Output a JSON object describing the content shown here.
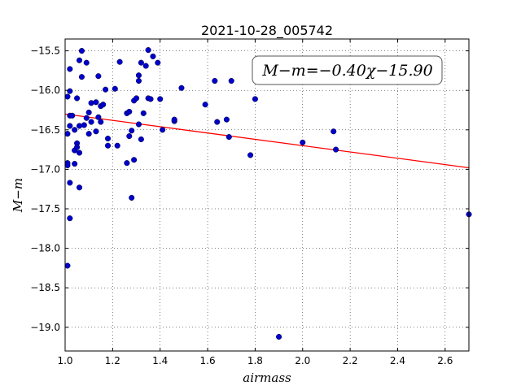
{
  "chart_data": {
    "type": "scatter",
    "title": "2021-10-28_005742",
    "xlabel": "airmass",
    "ylabel": "M−m",
    "xlim": [
      1.0,
      2.7
    ],
    "ylim": [
      -19.3,
      -15.35
    ],
    "y_inverted": true,
    "grid": true,
    "x_ticks": [
      1.0,
      1.2,
      1.4,
      1.6,
      1.8,
      2.0,
      2.2,
      2.4,
      2.6
    ],
    "x_tick_labels": [
      "1.0",
      "1.2",
      "1.4",
      "1.6",
      "1.8",
      "2.0",
      "2.2",
      "2.4",
      "2.6"
    ],
    "y_ticks": [
      -15.5,
      -16.0,
      -16.5,
      -17.0,
      -17.5,
      -18.0,
      -18.5,
      -19.0
    ],
    "y_tick_labels": [
      "−15.5",
      "−16.0",
      "−16.5",
      "−17.0",
      "−17.5",
      "−18.0",
      "−18.5",
      "−19.0"
    ],
    "fit": {
      "slope": -0.4,
      "intercept": -15.9,
      "color": "#ff0000"
    },
    "fit_label": "M−m=−0.40χ−15.90",
    "fit_label_position": "top-right",
    "point_color": "#0000cc",
    "points": [
      [
        1.01,
        -16.08
      ],
      [
        1.01,
        -16.55
      ],
      [
        1.01,
        -16.92
      ],
      [
        1.01,
        -16.95
      ],
      [
        1.01,
        -18.22
      ],
      [
        1.02,
        -15.73
      ],
      [
        1.02,
        -16.01
      ],
      [
        1.02,
        -16.32
      ],
      [
        1.02,
        -16.45
      ],
      [
        1.02,
        -17.17
      ],
      [
        1.02,
        -17.62
      ],
      [
        1.03,
        -16.32
      ],
      [
        1.04,
        -16.93
      ],
      [
        1.04,
        -16.76
      ],
      [
        1.04,
        -16.5
      ],
      [
        1.05,
        -16.1
      ],
      [
        1.05,
        -16.67
      ],
      [
        1.05,
        -16.72
      ],
      [
        1.06,
        -15.62
      ],
      [
        1.06,
        -17.23
      ],
      [
        1.06,
        -16.79
      ],
      [
        1.06,
        -16.45
      ],
      [
        1.07,
        -15.5
      ],
      [
        1.07,
        -15.83
      ],
      [
        1.08,
        -16.44
      ],
      [
        1.09,
        -15.65
      ],
      [
        1.09,
        -16.35
      ],
      [
        1.1,
        -16.55
      ],
      [
        1.1,
        -16.28
      ],
      [
        1.11,
        -16.4
      ],
      [
        1.11,
        -16.16
      ],
      [
        1.13,
        -16.15
      ],
      [
        1.13,
        -16.52
      ],
      [
        1.14,
        -15.82
      ],
      [
        1.14,
        -16.34
      ],
      [
        1.15,
        -16.2
      ],
      [
        1.15,
        -16.4
      ],
      [
        1.16,
        -16.18
      ],
      [
        1.17,
        -15.99
      ],
      [
        1.18,
        -16.7
      ],
      [
        1.18,
        -16.61
      ],
      [
        1.21,
        -15.98
      ],
      [
        1.22,
        -16.7
      ],
      [
        1.23,
        -15.64
      ],
      [
        1.26,
        -16.29
      ],
      [
        1.26,
        -16.92
      ],
      [
        1.27,
        -16.27
      ],
      [
        1.27,
        -16.58
      ],
      [
        1.28,
        -16.51
      ],
      [
        1.28,
        -17.36
      ],
      [
        1.29,
        -16.88
      ],
      [
        1.29,
        -16.13
      ],
      [
        1.3,
        -16.1
      ],
      [
        1.31,
        -16.43
      ],
      [
        1.31,
        -15.88
      ],
      [
        1.31,
        -15.81
      ],
      [
        1.32,
        -15.65
      ],
      [
        1.32,
        -16.62
      ],
      [
        1.33,
        -16.29
      ],
      [
        1.34,
        -15.69
      ],
      [
        1.35,
        -15.49
      ],
      [
        1.35,
        -16.1
      ],
      [
        1.36,
        -16.11
      ],
      [
        1.37,
        -15.57
      ],
      [
        1.39,
        -15.65
      ],
      [
        1.4,
        -16.11
      ],
      [
        1.41,
        -16.5
      ],
      [
        1.46,
        -16.39
      ],
      [
        1.46,
        -16.37
      ],
      [
        1.49,
        -15.97
      ],
      [
        1.59,
        -16.18
      ],
      [
        1.63,
        -15.88
      ],
      [
        1.64,
        -16.4
      ],
      [
        1.68,
        -16.37
      ],
      [
        1.69,
        -16.59
      ],
      [
        1.7,
        -15.88
      ],
      [
        1.78,
        -16.82
      ],
      [
        1.8,
        -16.11
      ],
      [
        1.9,
        -19.12
      ],
      [
        2.0,
        -16.66
      ],
      [
        2.13,
        -16.52
      ],
      [
        2.14,
        -16.75
      ],
      [
        2.7,
        -17.57
      ]
    ]
  }
}
